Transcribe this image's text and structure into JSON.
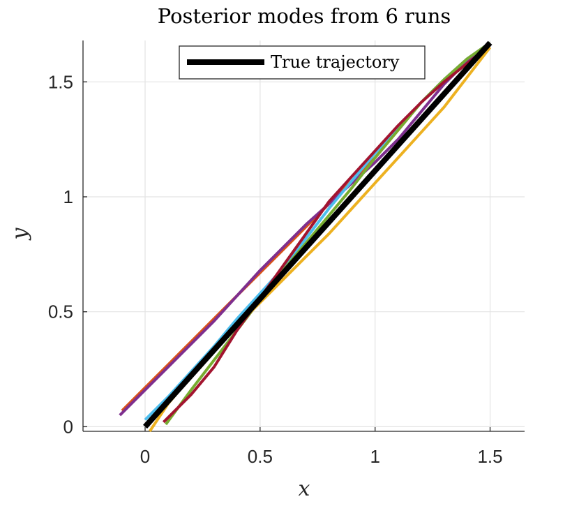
{
  "chart_data": {
    "type": "line",
    "title": "Posterior modes from 6 runs",
    "xlabel": "x",
    "ylabel": "y",
    "xlim": [
      -0.27,
      1.65
    ],
    "ylim": [
      -0.02,
      1.68
    ],
    "x_ticks": [
      0,
      0.5,
      1,
      1.5
    ],
    "x_tick_labels": [
      "0",
      "0.5",
      "1",
      "1.5"
    ],
    "y_ticks": [
      0,
      0.5,
      1,
      1.5
    ],
    "y_tick_labels": [
      "0",
      "0.5",
      "1",
      "1.5"
    ],
    "grid": true,
    "legend": {
      "placement": "top-center",
      "entries": [
        "True trajectory"
      ]
    },
    "series": [
      {
        "color": "#D95319",
        "x": [
          -0.1,
          0.0,
          0.1,
          0.2,
          0.3,
          0.4,
          0.5,
          0.6,
          0.7,
          0.8,
          0.9,
          1.0,
          1.1,
          1.2,
          1.3,
          1.4,
          1.5
        ],
        "y": [
          0.07,
          0.17,
          0.27,
          0.37,
          0.47,
          0.57,
          0.67,
          0.77,
          0.87,
          0.97,
          1.07,
          1.17,
          1.29,
          1.41,
          1.51,
          1.6,
          1.67
        ]
      },
      {
        "color": "#7E2F8E",
        "x": [
          -0.11,
          0.0,
          0.1,
          0.2,
          0.3,
          0.4,
          0.5,
          0.6,
          0.7,
          0.8,
          0.9,
          1.0,
          1.1,
          1.2,
          1.3,
          1.4,
          1.5
        ],
        "y": [
          0.05,
          0.16,
          0.26,
          0.36,
          0.46,
          0.57,
          0.68,
          0.78,
          0.88,
          0.97,
          1.06,
          1.15,
          1.25,
          1.37,
          1.49,
          1.59,
          1.67
        ]
      },
      {
        "color": "#4DBEEE",
        "x": [
          0.0,
          0.1,
          0.2,
          0.3,
          0.4,
          0.5,
          0.6,
          0.7,
          0.8,
          0.9,
          1.0,
          1.1,
          1.2,
          1.3,
          1.4,
          1.5
        ],
        "y": [
          0.03,
          0.13,
          0.24,
          0.35,
          0.47,
          0.58,
          0.69,
          0.82,
          0.95,
          1.07,
          1.19,
          1.3,
          1.41,
          1.51,
          1.6,
          1.67
        ]
      },
      {
        "color": "#77AC30",
        "x": [
          0.09,
          0.2,
          0.3,
          0.4,
          0.5,
          0.6,
          0.7,
          0.8,
          0.9,
          1.0,
          1.1,
          1.2,
          1.3,
          1.4,
          1.5
        ],
        "y": [
          0.01,
          0.16,
          0.29,
          0.42,
          0.55,
          0.68,
          0.8,
          0.92,
          1.04,
          1.17,
          1.29,
          1.41,
          1.51,
          1.6,
          1.67
        ]
      },
      {
        "color": "#EDB120",
        "x": [
          0.02,
          0.1,
          0.2,
          0.3,
          0.4,
          0.5,
          0.6,
          0.7,
          0.8,
          0.9,
          1.0,
          1.1,
          1.2,
          1.3,
          1.4,
          1.5
        ],
        "y": [
          -0.02,
          0.1,
          0.22,
          0.33,
          0.44,
          0.54,
          0.64,
          0.74,
          0.84,
          0.95,
          1.06,
          1.17,
          1.28,
          1.39,
          1.52,
          1.65
        ]
      },
      {
        "color": "#A2142F",
        "x": [
          0.08,
          0.2,
          0.3,
          0.4,
          0.5,
          0.6,
          0.7,
          0.8,
          0.9,
          1.0,
          1.1,
          1.2,
          1.3,
          1.4,
          1.5
        ],
        "y": [
          0.02,
          0.14,
          0.26,
          0.42,
          0.56,
          0.7,
          0.84,
          0.98,
          1.09,
          1.2,
          1.31,
          1.41,
          1.5,
          1.58,
          1.66
        ]
      },
      {
        "name": "True trajectory",
        "color": "#000000",
        "x": [
          0.0,
          1.5
        ],
        "y": [
          0.0,
          1.67
        ]
      }
    ]
  }
}
